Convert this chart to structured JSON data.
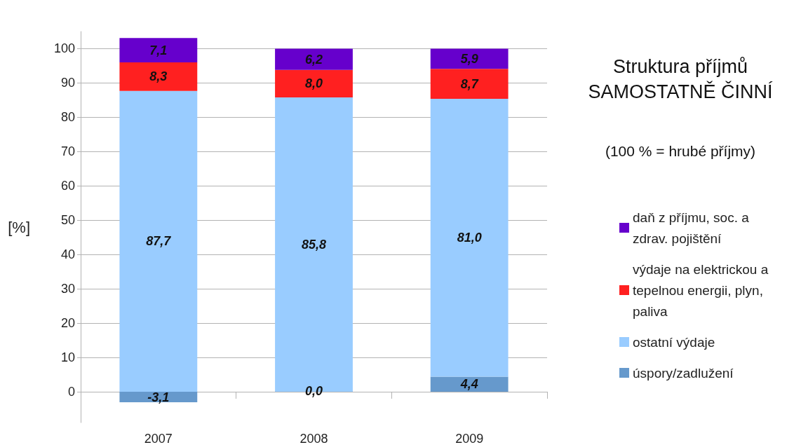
{
  "chart_data": {
    "type": "bar",
    "stacked": true,
    "title": "Struktura příjmů\nSAMOSTATNĚ ČINNÍ",
    "subtitle": "(100 % = hrubé příjmy)",
    "ylabel": "[%]",
    "categories": [
      "2007",
      "2008",
      "2009"
    ],
    "series": [
      {
        "name": "úspory/zadlužení",
        "color": "#6699cc",
        "values": [
          -3.1,
          0.0,
          4.4
        ],
        "value_labels": [
          "-3,1",
          "0,0",
          "4,4"
        ]
      },
      {
        "name": "ostatní výdaje",
        "color": "#99ccff",
        "values": [
          87.7,
          85.8,
          81.0
        ],
        "value_labels": [
          "87,7",
          "85,8",
          "81,0"
        ]
      },
      {
        "name": "výdaje na elektrickou a tepelnou energii, plyn, paliva",
        "color": "#ff2020",
        "values": [
          8.3,
          8.0,
          8.7
        ],
        "value_labels": [
          "8,3",
          "8,0",
          "8,7"
        ]
      },
      {
        "name": "daň z příjmu, soc. a zdrav. pojištění",
        "color": "#6600cc",
        "values": [
          7.1,
          6.2,
          5.9
        ],
        "value_labels": [
          "7,1",
          "6,2",
          "5,9"
        ]
      }
    ],
    "ylim": [
      -9,
      105
    ],
    "yticks": [
      0,
      10,
      20,
      30,
      40,
      50,
      60,
      70,
      80,
      90,
      100
    ],
    "grid": "y",
    "legend": "right"
  }
}
